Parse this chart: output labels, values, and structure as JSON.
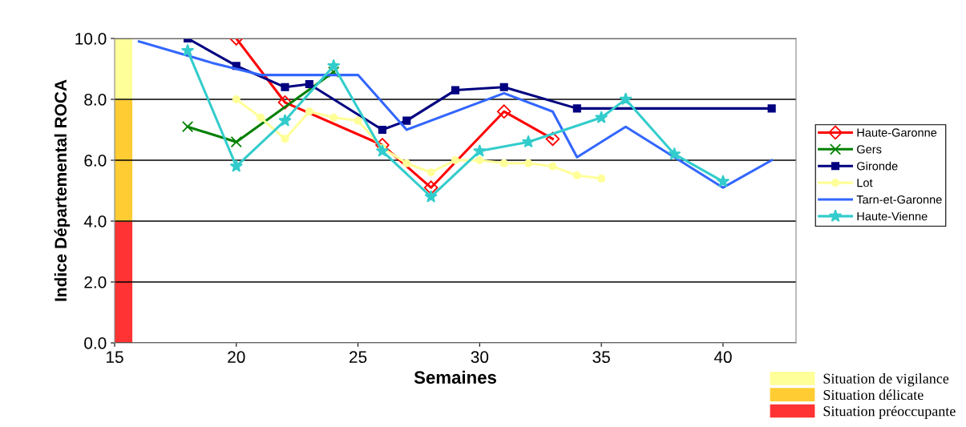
{
  "chart_data": {
    "type": "line",
    "xlabel": "Semaines",
    "ylabel": "Indice Départemental ROCA",
    "xlim": [
      15,
      43
    ],
    "xticks": [
      15,
      20,
      25,
      30,
      35,
      40
    ],
    "ylim": [
      0,
      10
    ],
    "yticks": [
      {
        "value": 0,
        "label": "0.0"
      },
      {
        "value": 2,
        "label": "2.0"
      },
      {
        "value": 4,
        "label": "4.0"
      },
      {
        "value": 6,
        "label": "6.0"
      },
      {
        "value": 8,
        "label": "8.0"
      },
      {
        "value": 10,
        "label": "10.0"
      }
    ],
    "grid": "y",
    "legend": "right",
    "stacked": true,
    "series": [
      {
        "name": "Haute-Garonne",
        "color": "#ff0000",
        "marker": "diamond",
        "x": [
          20,
          22,
          26,
          28,
          31,
          33
        ],
        "values": [
          10.0,
          7.9,
          6.5,
          5.1,
          7.6,
          6.7
        ]
      },
      {
        "name": "Gers",
        "color": "#008000",
        "marker": "cross",
        "x": [
          18,
          20,
          24
        ],
        "values": [
          7.1,
          6.6,
          8.9
        ]
      },
      {
        "name": "Gironde",
        "color": "#000080",
        "marker": "square",
        "x": [
          18,
          20,
          22,
          23,
          26,
          27,
          29,
          31,
          34,
          42
        ],
        "values": [
          10.0,
          9.1,
          8.4,
          8.5,
          7.0,
          7.3,
          8.3,
          8.4,
          7.7,
          7.7
        ]
      },
      {
        "name": "Lot",
        "color": "#ffff99",
        "marker": "circle",
        "x": [
          20,
          21,
          22,
          23,
          24,
          25,
          26,
          27,
          28,
          29,
          30,
          31,
          32,
          33,
          34,
          35
        ],
        "values": [
          8.0,
          7.4,
          6.7,
          7.6,
          7.4,
          7.3,
          6.4,
          5.9,
          5.6,
          6.0,
          6.0,
          5.9,
          5.9,
          5.8,
          5.5,
          5.4
        ]
      },
      {
        "name": "Tarn-et-Garonne",
        "color": "#3366ff",
        "marker": "none",
        "x": [
          16,
          19,
          21,
          25,
          27,
          31,
          33,
          34,
          36,
          40,
          42
        ],
        "values": [
          9.9,
          9.2,
          8.8,
          8.8,
          7.0,
          8.2,
          7.6,
          6.1,
          7.1,
          5.1,
          6.0
        ]
      },
      {
        "name": "Haute-Vienne",
        "color": "#33cccc",
        "marker": "star",
        "x": [
          18,
          20,
          22,
          24,
          26,
          28,
          30,
          32,
          35,
          36,
          38,
          40
        ],
        "values": [
          9.6,
          5.8,
          7.3,
          9.1,
          6.3,
          4.8,
          6.3,
          6.6,
          7.4,
          8.0,
          6.2,
          5.3
        ]
      },
      {
        "type": "bar",
        "name": "Situation préoccupante",
        "color": "#ff3333",
        "x": [
          15.35
        ],
        "values": [
          4
        ]
      },
      {
        "type": "bar",
        "name": "Situation délicate",
        "color": "#ffcc33",
        "x": [
          15.35
        ],
        "values": [
          4
        ]
      },
      {
        "type": "bar",
        "name": "Situation de vigilance",
        "color": "#ffff99",
        "x": [
          15.35
        ],
        "values": [
          2
        ]
      }
    ]
  }
}
